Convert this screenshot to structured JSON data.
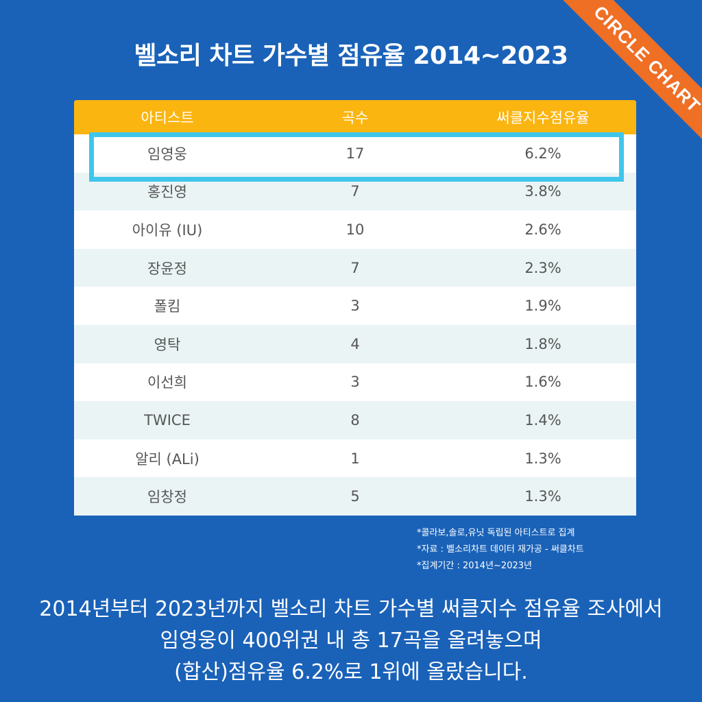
{
  "title": "벨소리 차트 가수별 점유율 2014~2023",
  "badge": "CIRCLE CHART",
  "colors": {
    "background": "#1a62b8",
    "header": "#fbb510",
    "highlight": "#3fc6ea",
    "ribbon": "#ef6f25"
  },
  "chart_data": {
    "type": "table",
    "columns": [
      "아티스트",
      "곡수",
      "써클지수점유율"
    ],
    "rows": [
      [
        "임영웅",
        "17",
        "6.2%"
      ],
      [
        "홍진영",
        "7",
        "3.8%"
      ],
      [
        "아이유 (IU)",
        "10",
        "2.6%"
      ],
      [
        "장윤정",
        "7",
        "2.3%"
      ],
      [
        "폴킴",
        "3",
        "1.9%"
      ],
      [
        "영탁",
        "4",
        "1.8%"
      ],
      [
        "이선희",
        "3",
        "1.6%"
      ],
      [
        "TWICE",
        "8",
        "1.4%"
      ],
      [
        "알리 (ALi)",
        "1",
        "1.3%"
      ],
      [
        "임창정",
        "5",
        "1.3%"
      ]
    ],
    "highlighted_row": 0
  },
  "notes": [
    "*콜라보,솔로,유닛 독립된 아티스트로 집계",
    "*자료 : 벨소리차트 데이터  재가공 - 써클차트",
    "*집계기간 : 2014년~2023년"
  ],
  "caption": [
    "2014년부터 2023년까지 벨소리 차트 가수별 써클지수 점유율 조사에서",
    "임영웅이 400위권 내 총 17곡을 올려놓으며",
    "(합산)점유율 6.2%로 1위에 올랐습니다."
  ]
}
